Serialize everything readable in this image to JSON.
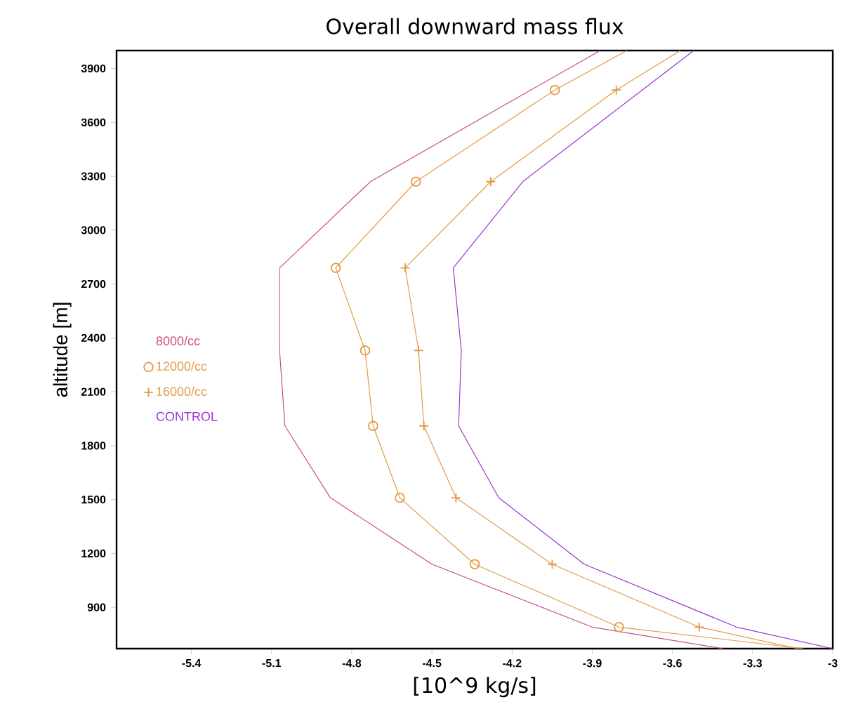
{
  "chart_data": {
    "type": "line",
    "title": "Overall downward mass flux",
    "xlabel": "[10^9 kg/s]",
    "ylabel": "altitude [m]",
    "series": [
      {
        "name": "8000/cc",
        "color": "#c8507a",
        "marker": "none",
        "x": [
          -3.41,
          -3.9,
          -4.5,
          -4.88,
          -5.05,
          -5.07,
          -5.07,
          -4.73,
          -4.13,
          -3.87
        ],
        "values": [
          670,
          790,
          1140,
          1510,
          1910,
          2330,
          2790,
          3270,
          3780,
          4000
        ]
      },
      {
        "name": "12000/cc",
        "color": "#e39a45",
        "marker": "circle",
        "x": [
          -3.11,
          -3.8,
          -4.34,
          -4.62,
          -4.72,
          -4.75,
          -4.86,
          -4.56,
          -4.04,
          -3.77
        ],
        "values": [
          670,
          790,
          1140,
          1510,
          1910,
          2330,
          2790,
          3270,
          3780,
          4000
        ]
      },
      {
        "name": "16000/cc",
        "color": "#e39a45",
        "marker": "cross",
        "x": [
          -3.13,
          -3.5,
          -4.05,
          -4.41,
          -4.53,
          -4.55,
          -4.6,
          -4.28,
          -3.81,
          -3.57
        ],
        "values": [
          670,
          790,
          1140,
          1510,
          1910,
          2330,
          2790,
          3270,
          3780,
          4000
        ]
      },
      {
        "name": "CONTROL",
        "color": "#9b35d0",
        "marker": "none",
        "x": [
          -3.0,
          -3.36,
          -3.93,
          -4.25,
          -4.4,
          -4.39,
          -4.42,
          -4.16,
          -3.52
        ],
        "values": [
          670,
          790,
          1140,
          1510,
          1910,
          2330,
          2790,
          3270,
          4000
        ]
      }
    ],
    "xlim": [
      -5.68,
      -3.0
    ],
    "ylim": [
      670,
      4000
    ],
    "xticks": [
      -5.4,
      -5.1,
      -4.8,
      -4.5,
      -4.2,
      -3.9,
      -3.6,
      -3.3,
      -3
    ],
    "yticks": [
      900,
      1200,
      1500,
      1800,
      2100,
      2400,
      2700,
      3000,
      3300,
      3600,
      3900
    ],
    "grid": false,
    "legend": "left"
  }
}
